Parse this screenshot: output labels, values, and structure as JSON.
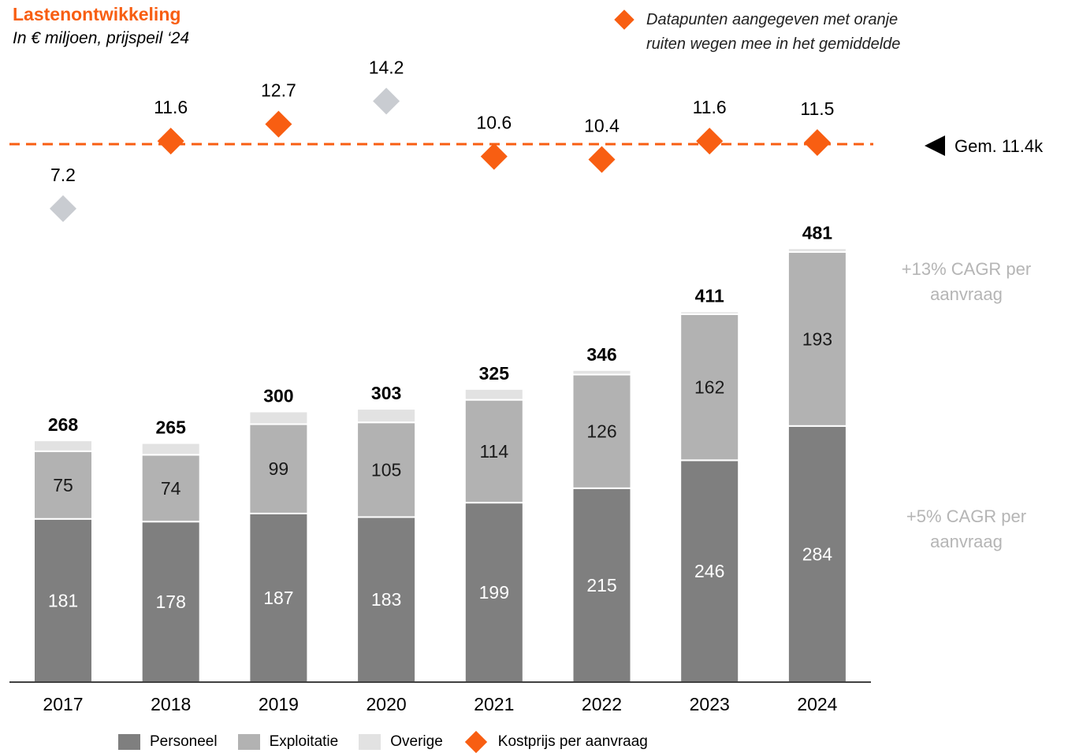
{
  "colors": {
    "accent": "#f85e12",
    "personeel": "#7f7f7f",
    "exploitatie": "#b2b2b2",
    "overige": "#e2e2e2",
    "excluded_marker": "#c9ccd1",
    "cagr_text": "#b5b5b5"
  },
  "note": "Datapunten aangegeven met oranje ruiten wegen mee in het gemiddelde",
  "cagr": {
    "top": "+13% CAGR per aanvraag",
    "bottom": "+5% CAGR per aanvraag"
  },
  "chart_data": {
    "type": "bar",
    "title": "Lastenontwikkeling",
    "subtitle": "In € miljoen, prijspeil ‘24",
    "categories": [
      "2017",
      "2018",
      "2019",
      "2020",
      "2021",
      "2022",
      "2023",
      "2024"
    ],
    "series": [
      {
        "name": "Personeel",
        "values": [
          181,
          178,
          187,
          183,
          199,
          215,
          246,
          284
        ]
      },
      {
        "name": "Exploitatie",
        "values": [
          75,
          74,
          99,
          105,
          114,
          126,
          162,
          193
        ]
      },
      {
        "name": "Overige",
        "values": [
          12,
          13,
          14,
          15,
          12,
          5,
          3,
          4
        ]
      }
    ],
    "totals": [
      268,
      265,
      300,
      303,
      325,
      346,
      411,
      481
    ],
    "stacked": true,
    "line_series": {
      "name": "Kostprijs per aanvraag",
      "values": [
        7.2,
        11.6,
        12.7,
        14.2,
        10.6,
        10.4,
        11.6,
        11.5
      ],
      "in_average": [
        false,
        true,
        true,
        false,
        true,
        true,
        true,
        true
      ],
      "average": 11.4,
      "average_label": "Gem. 11.4k"
    },
    "legend": [
      "Personeel",
      "Exploitatie",
      "Overige",
      "Kostprijs per aanvraag"
    ],
    "legend_position": "bottom"
  }
}
